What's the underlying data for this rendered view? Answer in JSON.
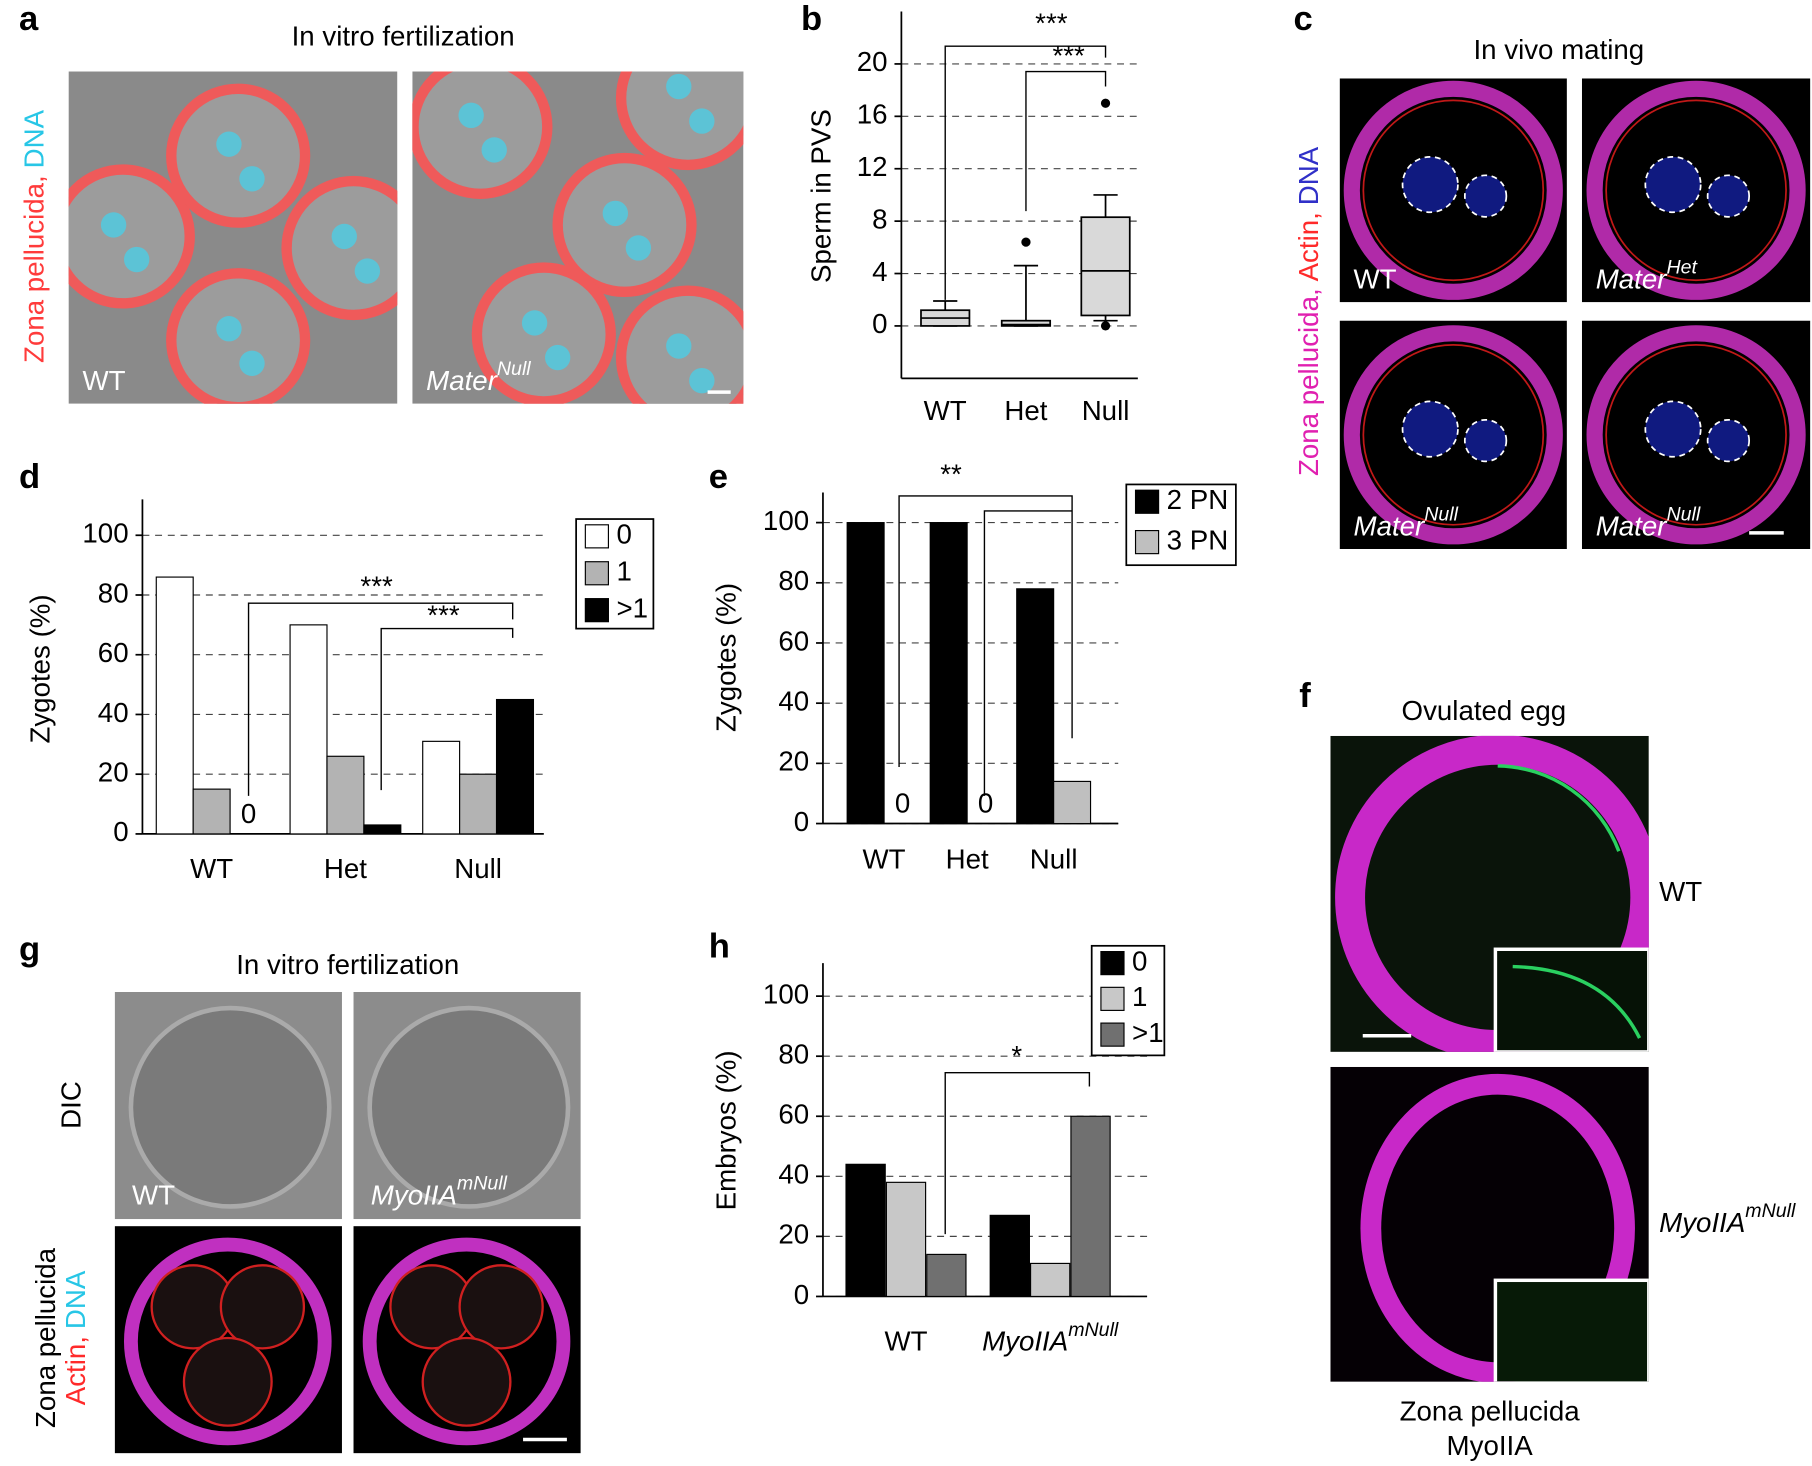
{
  "panels": {
    "a": {
      "letter": "a",
      "title": "In vitro fertilization",
      "side_label": [
        {
          "text": "Zona pellucida,",
          "color": "#ff3b3b"
        },
        {
          "text": "DNA",
          "color": "#27c6e6"
        }
      ],
      "images": [
        {
          "label": "WT"
        },
        {
          "label": "Mater",
          "sup": "Null"
        }
      ]
    },
    "c": {
      "letter": "c",
      "title": "In vivo mating",
      "side_label": [
        {
          "text": "Zona pellucida,",
          "color": "#e020b0"
        },
        {
          "text": "Actin,",
          "color": "#ff2a2a"
        },
        {
          "text": "DNA",
          "color": "#3030c8"
        }
      ],
      "images": [
        {
          "label": "WT"
        },
        {
          "label": "Mater",
          "sup": "Het"
        },
        {
          "label": "Mater",
          "sup": "Null"
        },
        {
          "label": "Mater",
          "sup": "Null"
        }
      ]
    },
    "f": {
      "letter": "f",
      "title": "Ovulated egg",
      "images": [
        {
          "label": "WT"
        },
        {
          "label": "MyoIIA",
          "sup": "mNull"
        }
      ],
      "bottom_label": [
        {
          "text": "Zona pellucida",
          "color": "#e020b0"
        },
        {
          "text": "MyoIIA",
          "color": "#1fb04a"
        }
      ]
    },
    "g": {
      "letter": "g",
      "title": "In vitro fertilization",
      "row_label": "DIC",
      "side_label": [
        {
          "text": "Zona pellucida",
          "color": "#e020b0"
        },
        {
          "text": "Actin,",
          "color": "#ff2a2a"
        },
        {
          "text": "DNA",
          "color": "#27c6e6"
        }
      ],
      "images": [
        {
          "label": "WT"
        },
        {
          "label": "MyoIIA",
          "sup": "mNull"
        }
      ]
    }
  },
  "chart_data": [
    {
      "type": "box",
      "letter": "b",
      "y_label": "Sperm in PVS",
      "categories": [
        "WT",
        "Het",
        "Null"
      ],
      "boxes": [
        {
          "whisker_low": 0,
          "q1": 0,
          "median": 0.6,
          "q3": 1.2,
          "whisker_high": 1.9,
          "outliers": []
        },
        {
          "whisker_low": 0,
          "q1": 0,
          "median": 0.1,
          "q3": 0.4,
          "whisker_high": 4.6,
          "outliers": [
            6.4
          ]
        },
        {
          "whisker_low": 0.4,
          "q1": 0.8,
          "median": 4.2,
          "q3": 8.3,
          "whisker_high": 10,
          "outliers": [
            17,
            0
          ]
        }
      ],
      "color": "#d9d9d9",
      "ylim": [
        -4,
        24
      ],
      "yticks": [
        0,
        4,
        8,
        12,
        16,
        20
      ],
      "grid": true,
      "annotations": [
        "***",
        "***"
      ]
    },
    {
      "type": "bar",
      "letter": "d",
      "y_label": "Zygotes (%)",
      "categories": [
        "WT",
        "Het",
        "Null"
      ],
      "series": [
        {
          "name": "0",
          "color": "#ffffff",
          "values": [
            86,
            70,
            31
          ]
        },
        {
          "name": "1",
          "color": "#b3b3b3",
          "values": [
            15,
            26,
            20
          ]
        },
        {
          "name": ">1",
          "color": "#000000",
          "values": [
            0,
            3,
            45
          ],
          "value_labels": [
            "0",
            null,
            null
          ]
        }
      ],
      "ylim": [
        0,
        112
      ],
      "yticks": [
        0,
        20,
        40,
        60,
        80,
        100
      ],
      "grid": true,
      "legend": "right",
      "annotations": [
        "***",
        "***"
      ]
    },
    {
      "type": "bar",
      "letter": "e",
      "y_label": "Zygotes (%)",
      "categories": [
        "WT",
        "Het",
        "Null"
      ],
      "series": [
        {
          "name": "2 PN",
          "color": "#000000",
          "values": [
            100,
            100,
            78
          ]
        },
        {
          "name": "3 PN",
          "color": "#bfbfbf",
          "values": [
            0,
            0,
            14
          ],
          "value_labels": [
            "0",
            "0",
            null
          ]
        }
      ],
      "ylim": [
        0,
        110
      ],
      "yticks": [
        0,
        20,
        40,
        60,
        80,
        100
      ],
      "grid": true,
      "legend": "right",
      "annotations": [
        "**"
      ]
    },
    {
      "type": "bar",
      "letter": "h",
      "y_label": "Embryos (%)",
      "categories": [
        "WT",
        "MyoIIA"
      ],
      "category_superscripts": [
        null,
        "mNull"
      ],
      "series": [
        {
          "name": "0",
          "color": "#000000",
          "values": [
            44,
            27
          ]
        },
        {
          "name": "1",
          "color": "#c8c8c8",
          "values": [
            38,
            11
          ]
        },
        {
          "name": ">1",
          "color": "#707070",
          "values": [
            14,
            60
          ]
        }
      ],
      "ylim": [
        0,
        111
      ],
      "yticks": [
        0,
        20,
        40,
        60,
        80,
        100
      ],
      "grid": true,
      "legend": "right",
      "annotations": [
        "*"
      ]
    }
  ]
}
